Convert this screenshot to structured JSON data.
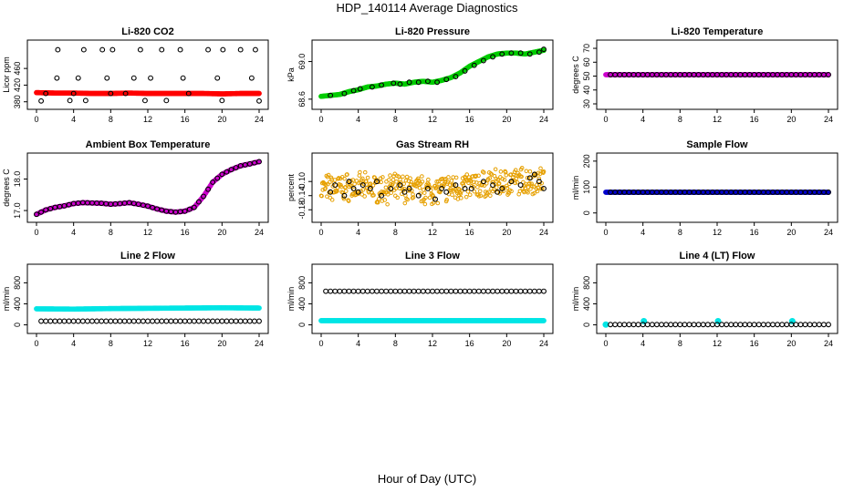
{
  "figure": {
    "title": "HDP_140114  Average Diagnostics",
    "xlabel": "Hour of Day (UTC)"
  },
  "chart_data": [
    {
      "type": "scatter",
      "title": "Li-820 CO2",
      "ylabel": "Licor ppm",
      "xlim": [
        0,
        24
      ],
      "ylim": [
        375,
        515
      ],
      "xticks": [
        0,
        4,
        8,
        12,
        16,
        20,
        24
      ],
      "yticks": [
        380,
        420,
        460
      ],
      "series": [
        {
          "color": "#ff0000",
          "style": "dense-line",
          "marker": "filled",
          "x": [
            0,
            2,
            4,
            6,
            8,
            10,
            12,
            14,
            16,
            18,
            20,
            22,
            24
          ],
          "y": [
            402,
            401,
            401,
            400,
            400,
            401,
            400,
            400,
            400,
            400,
            399,
            400,
            400
          ]
        },
        {
          "color": "#000000",
          "marker": "open",
          "x": [
            0.5,
            1,
            2.2,
            2.3,
            3.6,
            4,
            4.5,
            5.1,
            5.3,
            7.1,
            7.6,
            8,
            8.2,
            9.6,
            10.5,
            11.2,
            11.7,
            12.3,
            13.5,
            14,
            15.5,
            15.8,
            16.4,
            18.5,
            19.5,
            20,
            20.1,
            22,
            23.2,
            23.6,
            24
          ],
          "y": [
            382,
            400,
            437,
            505,
            383,
            400,
            437,
            505,
            383,
            505,
            437,
            400,
            505,
            400,
            437,
            505,
            383,
            437,
            505,
            383,
            505,
            437,
            400,
            505,
            437,
            383,
            505,
            505,
            437,
            505,
            382
          ]
        }
      ]
    },
    {
      "type": "scatter",
      "title": "Li-820 Pressure",
      "ylabel": "kPa",
      "xlim": [
        0,
        24
      ],
      "ylim": [
        68.55,
        69.17
      ],
      "xticks": [
        0,
        4,
        8,
        12,
        16,
        20,
        24
      ],
      "yticks": [
        68.6,
        69.0
      ],
      "series": [
        {
          "color": "#00cc00",
          "style": "dense-line",
          "marker": "filled",
          "x": [
            0,
            1,
            2,
            3,
            4,
            5,
            6,
            7,
            8,
            9,
            10,
            11,
            12,
            13,
            14,
            15,
            16,
            17,
            18,
            19,
            20,
            21,
            22,
            23,
            24
          ],
          "y": [
            68.63,
            68.64,
            68.65,
            68.68,
            68.7,
            68.73,
            68.74,
            68.76,
            68.77,
            68.76,
            68.78,
            68.79,
            68.78,
            68.8,
            68.83,
            68.88,
            68.95,
            69.0,
            69.05,
            69.08,
            69.09,
            69.09,
            69.08,
            69.1,
            69.12
          ]
        },
        {
          "color": "#000000",
          "marker": "open",
          "x": [
            1,
            2.5,
            3.5,
            4.2,
            5.5,
            6.5,
            7.8,
            8.5,
            9.5,
            10.5,
            11.5,
            12.5,
            13.5,
            14.5,
            15.5,
            16.5,
            17.5,
            18.5,
            19.5,
            20.5,
            21.5,
            22.5,
            23.5,
            24
          ],
          "y": [
            68.64,
            68.66,
            68.69,
            68.71,
            68.73,
            68.75,
            68.77,
            68.76,
            68.78,
            68.78,
            68.79,
            68.78,
            68.81,
            68.84,
            68.9,
            68.96,
            69.01,
            69.05,
            69.08,
            69.09,
            69.09,
            69.08,
            69.1,
            69.13
          ]
        }
      ]
    },
    {
      "type": "scatter",
      "title": "Li-820 Temperature",
      "ylabel": "degrees C",
      "xlim": [
        0,
        24
      ],
      "ylim": [
        30,
        72
      ],
      "xticks": [
        0,
        4,
        8,
        12,
        16,
        20,
        24
      ],
      "yticks": [
        30,
        40,
        50,
        60,
        70
      ],
      "series": [
        {
          "color": "#cc00cc",
          "style": "dense-line",
          "marker": "filled",
          "x": [
            0,
            24
          ],
          "y": [
            51,
            51
          ]
        },
        {
          "color": "#000000",
          "marker": "open",
          "spacing": 0.5,
          "x": [
            0.5,
            24
          ],
          "y": [
            51,
            51
          ]
        }
      ]
    },
    {
      "type": "scatter",
      "title": "Ambient Box Temperature",
      "ylabel": "degrees C",
      "xlim": [
        0,
        24
      ],
      "ylim": [
        16.8,
        18.65
      ],
      "xticks": [
        0,
        4,
        8,
        12,
        16,
        20,
        24
      ],
      "yticks": [
        17.0,
        18.0
      ],
      "series": [
        {
          "color": "#cc00cc",
          "style": "dense-line",
          "marker": "filled",
          "x": [
            0,
            1,
            2,
            3,
            4,
            5,
            6,
            7,
            8,
            9,
            10,
            11,
            12,
            13,
            14,
            15,
            16,
            17,
            18,
            19,
            20,
            21,
            22,
            23,
            24
          ],
          "y": [
            16.88,
            17.02,
            17.1,
            17.15,
            17.22,
            17.25,
            17.24,
            17.23,
            17.2,
            17.22,
            17.25,
            17.2,
            17.14,
            17.05,
            16.98,
            16.95,
            16.98,
            17.1,
            17.45,
            17.9,
            18.15,
            18.3,
            18.42,
            18.48,
            18.55
          ]
        },
        {
          "color": "#000000",
          "marker": "open",
          "spacing": 0.5,
          "x": [
            0,
            1,
            2,
            3,
            4,
            5,
            6,
            7,
            8,
            9,
            10,
            11,
            12,
            13,
            14,
            15,
            16,
            17,
            18,
            19,
            20,
            21,
            22,
            23,
            24
          ],
          "y": [
            16.88,
            17.02,
            17.1,
            17.15,
            17.22,
            17.25,
            17.24,
            17.23,
            17.2,
            17.22,
            17.25,
            17.2,
            17.14,
            17.05,
            16.98,
            16.95,
            16.98,
            17.1,
            17.45,
            17.9,
            18.15,
            18.3,
            18.42,
            18.48,
            18.55
          ]
        }
      ]
    },
    {
      "type": "scatter",
      "title": "Gas Stream RH",
      "ylabel": "percent",
      "xlim": [
        0,
        24
      ],
      "ylim": [
        -0.2,
        -0.035
      ],
      "xticks": [
        0,
        4,
        8,
        12,
        16,
        20,
        24
      ],
      "yticks": [
        -0.18,
        -0.14,
        -0.1
      ],
      "series": [
        {
          "color": "#e6a000",
          "style": "noise-band",
          "marker": "open",
          "x": [
            0,
            3,
            6,
            9,
            12,
            15,
            18,
            21,
            24
          ],
          "y": [
            -0.12,
            -0.115,
            -0.12,
            -0.12,
            -0.125,
            -0.115,
            -0.108,
            -0.1,
            -0.095
          ],
          "spread": 0.045
        },
        {
          "color": "#000000",
          "marker": "open",
          "x": [
            1,
            1.5,
            2.5,
            3,
            3.5,
            4,
            4.5,
            5.3,
            6,
            6.5,
            7.5,
            8.5,
            9,
            9.5,
            10.5,
            11.5,
            12.3,
            13,
            13.5,
            14.5,
            15.5,
            16.2,
            17.5,
            18.5,
            19,
            19.5,
            20.5,
            21.5,
            22.5,
            23,
            23.5,
            24
          ],
          "y": [
            -0.13,
            -0.11,
            -0.14,
            -0.1,
            -0.12,
            -0.13,
            -0.11,
            -0.12,
            -0.1,
            -0.14,
            -0.12,
            -0.11,
            -0.13,
            -0.12,
            -0.14,
            -0.12,
            -0.15,
            -0.12,
            -0.13,
            -0.11,
            -0.12,
            -0.12,
            -0.1,
            -0.11,
            -0.13,
            -0.12,
            -0.1,
            -0.11,
            -0.09,
            -0.08,
            -0.1,
            -0.12
          ]
        }
      ]
    },
    {
      "type": "scatter",
      "title": "Sample Flow",
      "ylabel": "ml/min",
      "xlim": [
        0,
        24
      ],
      "ylim": [
        -15,
        210
      ],
      "xticks": [
        0,
        4,
        8,
        12,
        16,
        20,
        24
      ],
      "yticks": [
        0,
        100,
        200
      ],
      "series": [
        {
          "color": "#0000cc",
          "style": "dense-line",
          "marker": "filled",
          "x": [
            0,
            24
          ],
          "y": [
            80,
            80
          ]
        },
        {
          "color": "#000000",
          "marker": "open",
          "spacing": 0.5,
          "x": [
            0.5,
            24
          ],
          "y": [
            80,
            80
          ]
        }
      ]
    },
    {
      "type": "scatter",
      "title": "Line 2 Flow",
      "ylabel": "ml/min",
      "xlim": [
        0,
        24
      ],
      "ylim": [
        -60,
        1050
      ],
      "xticks": [
        0,
        4,
        8,
        12,
        16,
        20,
        24
      ],
      "yticks": [
        0,
        400,
        800
      ],
      "series": [
        {
          "color": "#00e5e5",
          "style": "dense-line",
          "marker": "filled",
          "x": [
            0,
            4,
            8,
            12,
            16,
            20,
            24
          ],
          "y": [
            305,
            300,
            310,
            315,
            320,
            325,
            320
          ]
        },
        {
          "color": "#000000",
          "marker": "open",
          "spacing": 0.5,
          "x": [
            0.5,
            24
          ],
          "y": [
            70,
            70
          ]
        }
      ]
    },
    {
      "type": "scatter",
      "title": "Line 3 Flow",
      "ylabel": "ml/min",
      "xlim": [
        0,
        24
      ],
      "ylim": [
        -60,
        1050
      ],
      "xticks": [
        0,
        4,
        8,
        12,
        16,
        20,
        24
      ],
      "yticks": [
        0,
        400,
        800
      ],
      "series": [
        {
          "color": "#00e5e5",
          "style": "dense-line",
          "marker": "filled",
          "x": [
            0,
            24
          ],
          "y": [
            80,
            80
          ]
        },
        {
          "color": "#000000",
          "marker": "open",
          "spacing": 0.5,
          "x": [
            0.5,
            24
          ],
          "y": [
            640,
            640
          ]
        }
      ]
    },
    {
      "type": "scatter",
      "title": "Line 4 (LT) Flow",
      "ylabel": "ml/min",
      "xlim": [
        0,
        24
      ],
      "ylim": [
        -60,
        1050
      ],
      "xticks": [
        0,
        4,
        8,
        12,
        16,
        20,
        24
      ],
      "yticks": [
        0,
        400,
        800
      ],
      "series": [
        {
          "color": "#00e5e5",
          "marker": "filled",
          "x": [
            0,
            4.1,
            12.1,
            20.1
          ],
          "y": [
            5,
            70,
            70,
            70
          ]
        },
        {
          "color": "#000000",
          "marker": "open",
          "spacing": 0.5,
          "x": [
            0.5,
            24
          ],
          "y": [
            5,
            5
          ]
        }
      ]
    }
  ]
}
